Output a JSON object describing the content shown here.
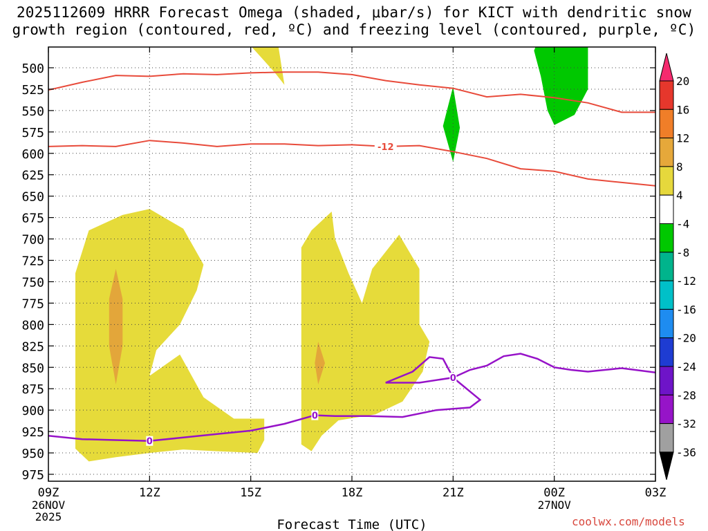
{
  "title_line1": "2025112609 HRRR Forecast Omega (shaded, μbar/s) for KICT with dendritic snow",
  "title_line2": "growth region (contoured, red, ºC) and freezing level (contoured, purple, ºC)",
  "credit": "coolwx.com/models",
  "chart_data": {
    "type": "time-height cross section (filled contours + contour lines)",
    "xlabel": "Forecast Time (UTC)",
    "ylabel": "",
    "x_hours": [
      9,
      12,
      15,
      18,
      21,
      24,
      27
    ],
    "x_tick_labels": [
      "09Z",
      "12Z",
      "15Z",
      "18Z",
      "21Z",
      "00Z",
      "03Z"
    ],
    "x_date_labels": [
      {
        "hour": 9,
        "lines": [
          "26NOV",
          "2025"
        ]
      },
      {
        "hour": 24,
        "lines": [
          "27NOV"
        ]
      }
    ],
    "xlim": [
      9,
      27
    ],
    "ylim": [
      990,
      470
    ],
    "y_ticks": [
      500,
      525,
      550,
      575,
      600,
      625,
      650,
      675,
      700,
      725,
      750,
      775,
      800,
      825,
      850,
      875,
      900,
      925,
      950,
      975
    ],
    "grid": "dotted",
    "colorbar": {
      "labels": [
        "20",
        "16",
        "12",
        "8",
        "4",
        "-4",
        "-8",
        "-12",
        "-16",
        "-20",
        "-24",
        "-28",
        "-32",
        "-36"
      ],
      "colors": [
        "#f52a6e",
        "#e6372c",
        "#f07e28",
        "#e6a83a",
        "#e6d83c",
        "#ffffff",
        "#00c800",
        "#00b48c",
        "#00c0c8",
        "#1e8cf0",
        "#1e3cd2",
        "#6e14c8",
        "#9614c8",
        "#a0a0a0",
        "#000000"
      ]
    },
    "omega_shaded": [
      {
        "level": "4 to 8",
        "color": "#e6db3a",
        "polygons": [
          [
            [
              9.8,
              945
            ],
            [
              9.8,
              830
            ],
            [
              9.8,
              740
            ],
            [
              10.2,
              690
            ],
            [
              11.2,
              672
            ],
            [
              12.0,
              665
            ],
            [
              13.0,
              688
            ],
            [
              13.6,
              730
            ],
            [
              13.4,
              760
            ],
            [
              12.9,
              800
            ],
            [
              12.2,
              830
            ],
            [
              12.0,
              860
            ],
            [
              12.9,
              835
            ],
            [
              13.6,
              885
            ],
            [
              14.5,
              910
            ],
            [
              15.4,
              910
            ],
            [
              15.4,
              935
            ],
            [
              15.2,
              950
            ],
            [
              14.0,
              948
            ],
            [
              13.0,
              946
            ],
            [
              12.0,
              950
            ],
            [
              11.0,
              955
            ],
            [
              10.2,
              960
            ]
          ],
          [
            [
              16.5,
              940
            ],
            [
              16.5,
              880
            ],
            [
              16.5,
              800
            ],
            [
              16.5,
              710
            ],
            [
              16.8,
              690
            ],
            [
              17.4,
              668
            ],
            [
              17.5,
              700
            ],
            [
              17.9,
              740
            ],
            [
              18.3,
              775
            ],
            [
              18.6,
              735
            ],
            [
              19.0,
              715
            ],
            [
              19.4,
              695
            ],
            [
              20.0,
              735
            ],
            [
              20.0,
              800
            ],
            [
              20.3,
              820
            ],
            [
              20.1,
              855
            ],
            [
              19.5,
              890
            ],
            [
              18.7,
              905
            ],
            [
              17.6,
              912
            ],
            [
              17.1,
              930
            ],
            [
              16.8,
              948
            ]
          ],
          [
            [
              14.9,
              470
            ],
            [
              15.8,
              470
            ],
            [
              16.0,
              520
            ],
            [
              15.7,
              505
            ]
          ]
        ]
      },
      {
        "level": "8 to 12",
        "color": "#e3a63a",
        "polygons": [
          [
            [
              11.0,
              735
            ],
            [
              11.2,
              770
            ],
            [
              11.2,
              825
            ],
            [
              11.0,
              870
            ],
            [
              10.8,
              825
            ],
            [
              10.8,
              770
            ]
          ],
          [
            [
              17.0,
              820
            ],
            [
              17.2,
              845
            ],
            [
              17.0,
              870
            ],
            [
              16.9,
              845
            ]
          ]
        ]
      },
      {
        "level": "-8 to -4",
        "color": "#00c800",
        "polygons": [
          [
            [
              23.5,
              470
            ],
            [
              25.0,
              470
            ],
            [
              25.0,
              525
            ],
            [
              24.6,
              555
            ],
            [
              24.0,
              567
            ],
            [
              23.8,
              550
            ],
            [
              23.6,
              510
            ],
            [
              23.4,
              480
            ]
          ],
          [
            [
              21.0,
              522
            ],
            [
              21.2,
              570
            ],
            [
              21.0,
              610
            ],
            [
              20.7,
              568
            ]
          ]
        ]
      }
    ],
    "dgz_contours": [
      {
        "label": "-12",
        "color": "#e84a3a",
        "points": [
          [
            9,
            526
          ],
          [
            10,
            517
          ],
          [
            11,
            509
          ],
          [
            12,
            510
          ],
          [
            13,
            507
          ],
          [
            14,
            508
          ],
          [
            15,
            506
          ],
          [
            16,
            505
          ],
          [
            17,
            505
          ],
          [
            18,
            508
          ],
          [
            19,
            515
          ],
          [
            20,
            520
          ],
          [
            21,
            524
          ],
          [
            22,
            534
          ],
          [
            23,
            531
          ],
          [
            24,
            535
          ],
          [
            25,
            541
          ],
          [
            26,
            552
          ],
          [
            27,
            552
          ]
        ]
      },
      {
        "label": "-12",
        "color": "#e84a3a",
        "label_x": 19.0,
        "points": [
          [
            9,
            592
          ],
          [
            10,
            591
          ],
          [
            11,
            592
          ],
          [
            12,
            585
          ],
          [
            13,
            588
          ],
          [
            14,
            592
          ],
          [
            15,
            589
          ],
          [
            16,
            589
          ],
          [
            17,
            591
          ],
          [
            18,
            590
          ],
          [
            19,
            592
          ],
          [
            20,
            591
          ],
          [
            21,
            598
          ],
          [
            22,
            606
          ],
          [
            23,
            618
          ],
          [
            24,
            621
          ],
          [
            25,
            630
          ],
          [
            26,
            634
          ],
          [
            27,
            638
          ]
        ]
      }
    ],
    "freezing_level_contour": {
      "label": "0",
      "color": "#9612c8",
      "label_points": [
        [
          12.0,
          936
        ],
        [
          16.9,
          906
        ],
        [
          21.0,
          862
        ]
      ],
      "points": [
        [
          9,
          930
        ],
        [
          10,
          934
        ],
        [
          11,
          935
        ],
        [
          12,
          936
        ],
        [
          13,
          932
        ],
        [
          14,
          928
        ],
        [
          15,
          924
        ],
        [
          16,
          916
        ],
        [
          16.9,
          906
        ],
        [
          17.5,
          907
        ],
        [
          18.5,
          907
        ],
        [
          19.5,
          908
        ],
        [
          20.5,
          900
        ],
        [
          21.5,
          897
        ],
        [
          21.8,
          888
        ],
        [
          21.0,
          862
        ],
        [
          20.0,
          868
        ],
        [
          19.0,
          868
        ],
        [
          19.8,
          855
        ],
        [
          20.3,
          838
        ],
        [
          20.7,
          840
        ],
        [
          21.0,
          862
        ],
        [
          21.5,
          853
        ],
        [
          22.0,
          848
        ],
        [
          22.5,
          837
        ],
        [
          23.0,
          834
        ],
        [
          23.5,
          840
        ],
        [
          24.0,
          850
        ],
        [
          24.5,
          853
        ],
        [
          25.0,
          855
        ],
        [
          25.5,
          853
        ],
        [
          26.0,
          851
        ],
        [
          27,
          856
        ]
      ]
    },
    "terrain": {
      "color": "#a0522d",
      "top_hpa": 983
    }
  }
}
